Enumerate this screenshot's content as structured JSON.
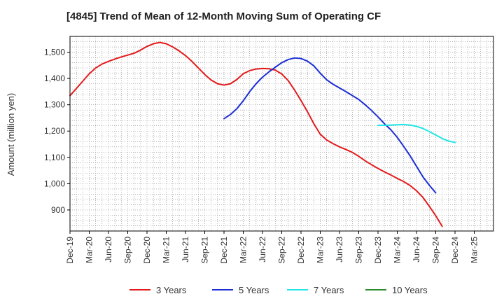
{
  "chart_data": {
    "type": "line",
    "title": "[4845]  Trend of Mean of 12-Month Moving Sum of Operating CF",
    "xlabel": "",
    "ylabel": "Amount (million yen)",
    "ylim": [
      820,
      1560
    ],
    "yticks": [
      900,
      1000,
      1100,
      1200,
      1300,
      1400,
      1500
    ],
    "ytick_labels": [
      "900",
      "1,000",
      "1,100",
      "1,200",
      "1,300",
      "1,400",
      "1,500"
    ],
    "xlim": [
      0,
      66
    ],
    "xtick_labels": [
      "Dec-19",
      "Mar-20",
      "Jun-20",
      "Sep-20",
      "Dec-20",
      "Mar-21",
      "Jun-21",
      "Sep-21",
      "Dec-21",
      "Mar-22",
      "Jun-22",
      "Sep-22",
      "Dec-22",
      "Mar-23",
      "Jun-23",
      "Sep-23",
      "Dec-23",
      "Mar-24",
      "Jun-24",
      "Sep-24",
      "Dec-24",
      "Mar-25"
    ],
    "grid": true,
    "legend_position": "bottom",
    "series": [
      {
        "name": "3 Years",
        "color": "#e31a1c",
        "start_index": 0,
        "values": [
          1335,
          1362,
          1390,
          1418,
          1440,
          1455,
          1465,
          1474,
          1482,
          1489,
          1496,
          1508,
          1522,
          1532,
          1537,
          1532,
          1520,
          1505,
          1487,
          1465,
          1440,
          1415,
          1394,
          1380,
          1375,
          1380,
          1396,
          1418,
          1430,
          1436,
          1438,
          1437,
          1432,
          1417,
          1392,
          1356,
          1316,
          1274,
          1228,
          1188,
          1166,
          1152,
          1140,
          1130,
          1119,
          1104,
          1087,
          1072,
          1058,
          1045,
          1033,
          1020,
          1008,
          993,
          973,
          948,
          914,
          878,
          838
        ]
      },
      {
        "name": "5 Years",
        "color": "#1c2ed6",
        "start_index": 24,
        "values": [
          1247,
          1263,
          1285,
          1315,
          1350,
          1380,
          1405,
          1425,
          1443,
          1460,
          1472,
          1478,
          1476,
          1466,
          1448,
          1420,
          1395,
          1378,
          1364,
          1350,
          1335,
          1320,
          1300,
          1278,
          1254,
          1228,
          1205,
          1176,
          1142,
          1106,
          1066,
          1026,
          994,
          965
        ]
      },
      {
        "name": "7 Years",
        "color": "#22e6e6",
        "start_index": 48,
        "values": [
          1222,
          1222,
          1223,
          1224,
          1225,
          1223,
          1218,
          1210,
          1198,
          1185,
          1172,
          1162,
          1157
        ]
      },
      {
        "name": "10 Years",
        "color": "#2a8c2a",
        "start_index": 0,
        "values": []
      }
    ]
  }
}
